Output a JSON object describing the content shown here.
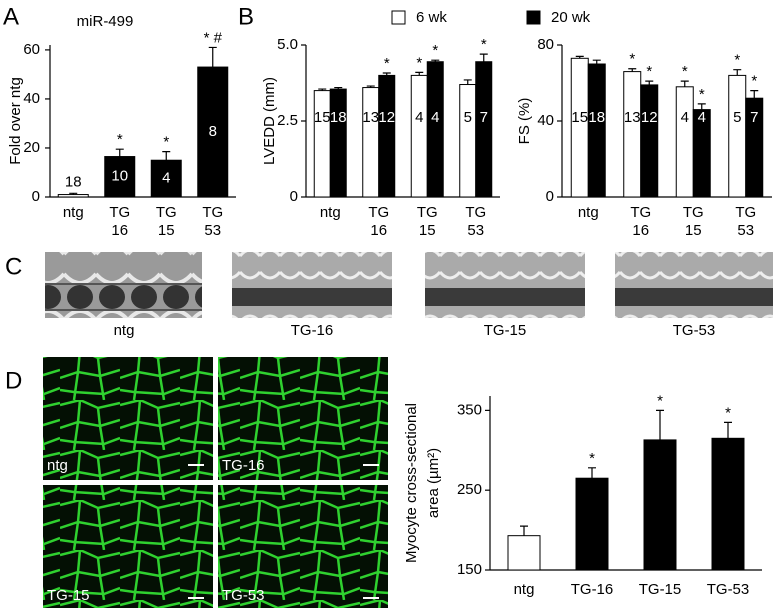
{
  "panel_labels": [
    "A",
    "B",
    "C",
    "D"
  ],
  "echo_labels": [
    "ntg",
    "TG-16",
    "TG-15",
    "TG-53"
  ],
  "micrograph_labels": [
    "ntg",
    "TG-16",
    "TG-15",
    "TG-53"
  ],
  "chart_data": [
    {
      "type": "bar",
      "title": "miR-499",
      "ylabel": "Fold over ntg",
      "categories": [
        [
          "ntg"
        ],
        [
          "TG",
          "16"
        ],
        [
          "TG",
          "15"
        ],
        [
          "TG",
          "53"
        ]
      ],
      "series": [
        {
          "colors": [
            "#ffffff",
            "#000000",
            "#000000",
            "#000000"
          ],
          "values": [
            1,
            16.5,
            15,
            53
          ],
          "errors": [
            0.5,
            3,
            3.5,
            8
          ],
          "n": [
            18,
            10,
            4,
            8
          ]
        }
      ],
      "annotations": [
        {
          "series": 0,
          "index": 1,
          "text": "*"
        },
        {
          "series": 0,
          "index": 2,
          "text": "*"
        },
        {
          "series": 0,
          "index": 3,
          "text": "* #"
        }
      ],
      "ylim": [
        0,
        62
      ],
      "yticks": [
        0,
        20,
        40,
        60
      ]
    },
    {
      "type": "bar",
      "ylabel": "LVEDD (mm)",
      "categories": [
        [
          "ntg"
        ],
        [
          "TG",
          "16"
        ],
        [
          "TG",
          "15"
        ],
        [
          "TG",
          "53"
        ]
      ],
      "series": [
        {
          "name": "6 wk",
          "color": "#ffffff",
          "values": [
            3.5,
            3.6,
            4.0,
            3.7
          ],
          "errors": [
            0.05,
            0.05,
            0.1,
            0.15
          ],
          "n": [
            15,
            13,
            4,
            5
          ]
        },
        {
          "name": "20 wk",
          "color": "#000000",
          "values": [
            3.55,
            4.0,
            4.45,
            4.45
          ],
          "errors": [
            0.05,
            0.08,
            0.05,
            0.25
          ],
          "n": [
            18,
            12,
            4,
            7
          ]
        }
      ],
      "annotations": [
        {
          "series": 0,
          "index": 2,
          "text": "*"
        },
        {
          "series": 1,
          "index": 1,
          "text": "*"
        },
        {
          "series": 1,
          "index": 2,
          "text": "*"
        },
        {
          "series": 1,
          "index": 3,
          "text": "*"
        }
      ],
      "ylim": [
        0,
        5
      ],
      "yticks": [
        0,
        2.5,
        {
          "value": 5,
          "label": "5.0"
        }
      ]
    },
    {
      "type": "bar",
      "ylabel": "FS (%)",
      "categories": [
        [
          "ntg"
        ],
        [
          "TG",
          "16"
        ],
        [
          "TG",
          "15"
        ],
        [
          "TG",
          "53"
        ]
      ],
      "series": [
        {
          "color": "#ffffff",
          "values": [
            73,
            66,
            58,
            64
          ],
          "errors": [
            1,
            1.5,
            3,
            3
          ],
          "n": [
            15,
            13,
            4,
            5
          ]
        },
        {
          "color": "#000000",
          "values": [
            70,
            59,
            46,
            52
          ],
          "errors": [
            2,
            2,
            3,
            4
          ],
          "n": [
            18,
            12,
            4,
            7
          ]
        }
      ],
      "annotations": [
        {
          "series": 0,
          "index": 1,
          "text": "*"
        },
        {
          "series": 0,
          "index": 2,
          "text": "*"
        },
        {
          "series": 0,
          "index": 3,
          "text": "*"
        },
        {
          "series": 1,
          "index": 1,
          "text": "*"
        },
        {
          "series": 1,
          "index": 2,
          "text": "*"
        },
        {
          "series": 1,
          "index": 3,
          "text": "*"
        }
      ],
      "ylim": [
        0,
        80
      ],
      "yticks": [
        0,
        40,
        80
      ]
    },
    {
      "type": "bar",
      "ylabel": [
        "Myocyte cross-sectional",
        "area (µm²)"
      ],
      "categories": [
        "ntg",
        "TG-16",
        "TG-15",
        "TG-53"
      ],
      "series": [
        {
          "colors": [
            "#ffffff",
            "#000000",
            "#000000",
            "#000000"
          ],
          "values": [
            193,
            265,
            313,
            315
          ],
          "errors": [
            12,
            13,
            37,
            20
          ]
        }
      ],
      "annotations": [
        {
          "series": 0,
          "index": 1,
          "text": "*"
        },
        {
          "series": 0,
          "index": 2,
          "text": "*"
        },
        {
          "series": 0,
          "index": 3,
          "text": "*"
        }
      ],
      "ylim": [
        150,
        368
      ],
      "yticks": [
        150,
        250,
        350
      ]
    }
  ]
}
